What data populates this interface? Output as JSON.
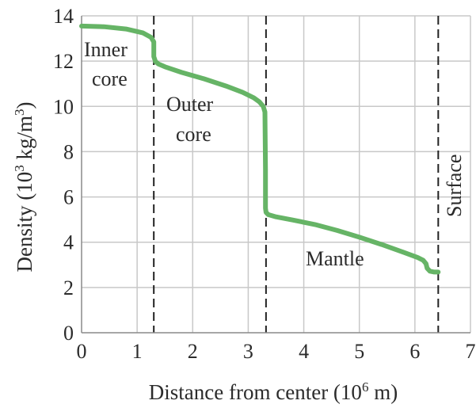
{
  "chart_data": {
    "type": "line",
    "xlabel": {
      "pre": "Distance from center (10",
      "sup": "6",
      "post": " m)"
    },
    "ylabel": {
      "pre": "Density (10",
      "sup": "3",
      "post": " kg/m",
      "sup2": "3",
      "close": ")"
    },
    "xlim": [
      0,
      7
    ],
    "ylim": [
      0,
      14
    ],
    "x_ticks": [
      0,
      1,
      2,
      3,
      4,
      5,
      6,
      7
    ],
    "y_ticks": [
      0,
      2,
      4,
      6,
      8,
      10,
      12,
      14
    ],
    "grid": true,
    "line_color": "#66b466",
    "series": [
      {
        "x": [
          0.0,
          0.4,
          0.8,
          1.1,
          1.25,
          1.3,
          1.3,
          1.33,
          1.38,
          1.5,
          1.8,
          2.2,
          2.6,
          2.9,
          3.1,
          3.2,
          3.27,
          3.3,
          3.31,
          3.31,
          3.32,
          3.36,
          3.5,
          3.8,
          4.2,
          4.6,
          5.0,
          5.4,
          5.8,
          6.05,
          6.15,
          6.2,
          6.22,
          6.27,
          6.35,
          6.42
        ],
        "y": [
          13.55,
          13.52,
          13.42,
          13.25,
          13.05,
          12.85,
          12.2,
          11.98,
          11.88,
          11.75,
          11.5,
          11.22,
          10.9,
          10.62,
          10.38,
          10.2,
          10.0,
          9.75,
          7.2,
          5.5,
          5.32,
          5.22,
          5.12,
          4.98,
          4.78,
          4.52,
          4.22,
          3.9,
          3.55,
          3.32,
          3.2,
          3.05,
          2.85,
          2.72,
          2.68,
          2.68
        ]
      }
    ],
    "boundaries": [
      1.3,
      3.32,
      6.42
    ],
    "annotations": {
      "inner_core": [
        "Inner",
        "core"
      ],
      "outer_core": [
        "Outer",
        "core"
      ],
      "mantle": "Mantle",
      "surface": "Surface"
    }
  }
}
